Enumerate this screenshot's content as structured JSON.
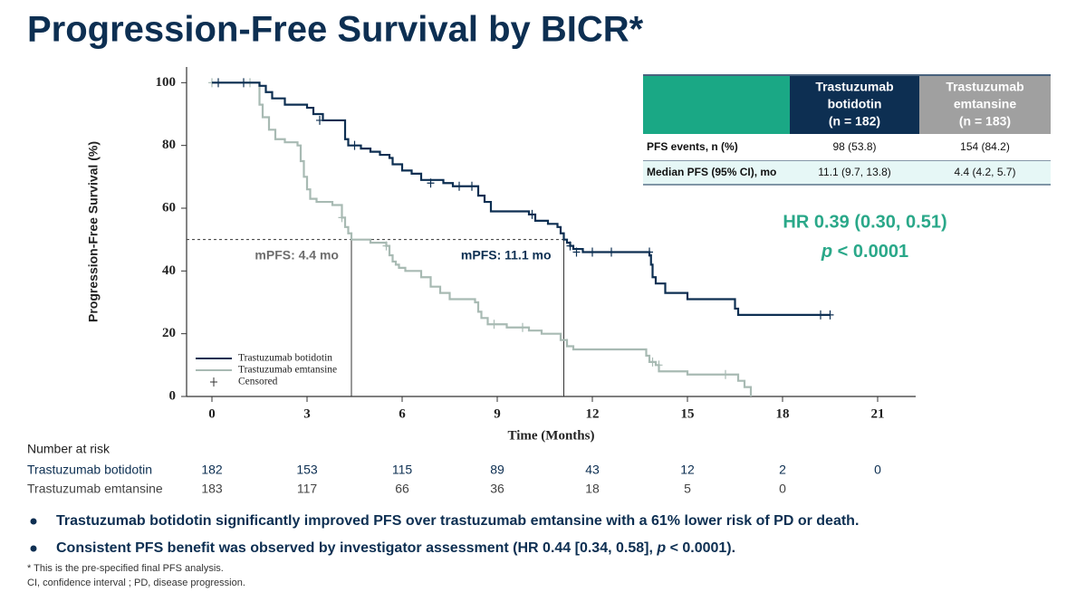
{
  "title": "Progression-Free Survival by BICR*",
  "chart_data": {
    "type": "line",
    "step": true,
    "xlabel": "Time (Months)",
    "ylabel": "Progression-Free Survival (%)",
    "xlim": [
      -0.8,
      22.2
    ],
    "ylim": [
      0,
      105
    ],
    "xticks": [
      0,
      3,
      6,
      9,
      12,
      15,
      18,
      21
    ],
    "yticks": [
      0,
      20,
      40,
      60,
      80,
      100
    ],
    "legend_position": "lower left",
    "censor_label": "Censored",
    "series": [
      {
        "name": "Trastuzumab botidotin",
        "color": "#0d2f52",
        "x": [
          0,
          1.5,
          1.7,
          1.9,
          2.3,
          3.0,
          3.2,
          3.5,
          4.2,
          4.3,
          4.7,
          5.0,
          5.3,
          5.6,
          5.7,
          6.0,
          6.3,
          6.6,
          7.3,
          7.6,
          8.4,
          8.6,
          8.8,
          10.0,
          10.2,
          10.6,
          10.9,
          11.0,
          11.1,
          11.2,
          11.3,
          11.4,
          11.7,
          13.8,
          13.85,
          13.9,
          14.0,
          14.3,
          15.0,
          16.5,
          16.6,
          19.5
        ],
        "values": [
          100,
          99,
          97,
          95,
          93,
          92,
          90,
          88,
          82,
          80,
          79,
          78,
          77,
          76,
          74,
          72,
          71,
          69,
          68,
          67,
          64,
          62,
          59,
          58,
          56,
          55,
          54,
          52,
          50,
          49,
          48,
          47,
          46,
          45,
          42,
          38,
          36,
          33,
          31,
          28,
          26,
          26
        ],
        "censored_x": [
          0.2,
          1.0,
          3.4,
          4.5,
          6.9,
          7.8,
          8.2,
          10.1,
          11.3,
          11.5,
          12.0,
          12.6,
          13.8,
          19.2,
          19.5
        ],
        "censored_values": [
          100,
          100,
          88,
          80,
          68,
          67,
          67,
          58,
          48,
          46,
          46,
          46,
          46,
          26,
          26
        ]
      },
      {
        "name": "Trastuzumab emtansine",
        "color": "#a8bab3",
        "x": [
          0,
          1.5,
          1.6,
          1.8,
          2.0,
          2.3,
          2.7,
          2.8,
          2.9,
          3.0,
          3.1,
          3.3,
          3.8,
          4.1,
          4.2,
          4.3,
          4.4,
          5.0,
          5.5,
          5.6,
          5.7,
          5.8,
          5.9,
          6.1,
          6.6,
          6.9,
          7.2,
          7.5,
          8.3,
          8.4,
          8.5,
          8.7,
          9.3,
          10.0,
          10.4,
          11.0,
          11.2,
          11.4,
          13.7,
          13.8,
          14.0,
          14.1,
          15.0,
          16.6,
          16.8,
          17.0
        ],
        "values": [
          100,
          93,
          89,
          85,
          82,
          81,
          80,
          75,
          70,
          66,
          63,
          62,
          61,
          57,
          54,
          52,
          50,
          49,
          48,
          45,
          43,
          42,
          41,
          40,
          38,
          35,
          33,
          31,
          30,
          27,
          25,
          23,
          22,
          21,
          20,
          18,
          16,
          15,
          13,
          11,
          10,
          8,
          7,
          5,
          3,
          0
        ],
        "censored_x": [
          0.0,
          1.2,
          4.1,
          5.5,
          8.9,
          9.8,
          13.9,
          14.1,
          16.2
        ],
        "censored_values": [
          100,
          100,
          57,
          48,
          23,
          22,
          11,
          10,
          7
        ]
      }
    ],
    "annotations": [
      {
        "text": "mPFS: 4.4 mo",
        "x": 4.4,
        "y": 50
      },
      {
        "text": "mPFS: 11.1 mo",
        "x": 11.1,
        "y": 50
      }
    ],
    "risk_table": {
      "title": "Number at risk",
      "rows": [
        {
          "name": "Trastuzumab botidotin",
          "values": [
            182,
            153,
            115,
            89,
            43,
            12,
            2,
            0
          ]
        },
        {
          "name": "Trastuzumab emtansine",
          "values": [
            183,
            117,
            66,
            36,
            18,
            5,
            0,
            null
          ]
        }
      ]
    }
  },
  "table": {
    "columns": [
      [
        "Trastuzumab",
        "botidotin",
        "(n = 182)"
      ],
      [
        "Trastuzumab",
        "emtansine",
        "(n = 183)"
      ]
    ],
    "rows": [
      [
        "PFS events, n (%)",
        "98 (53.8)",
        "154 (84.2)"
      ],
      [
        "Median PFS (95% CI), mo",
        "11.1 (9.7, 13.8)",
        "4.4 (4.2, 5.7)"
      ]
    ]
  },
  "hazard_ratio": {
    "hr": "HR 0.39 (0.30, 0.51)",
    "p_label": "p",
    "p_value": " < 0.0001"
  },
  "bullets": [
    [
      "Trastuzumab botidotin significantly improved PFS over trastuzumab emtansine with a 61% lower risk of PD or death."
    ],
    [
      "Consistent PFS benefit was observed by investigator assessment (HR 0.44 [0.34, 0.58], ",
      "p",
      " < 0.0001)."
    ]
  ],
  "footnotes": [
    "* This is the pre-specified final PFS analysis.",
    "CI, confidence interval ; PD, disease progression."
  ]
}
